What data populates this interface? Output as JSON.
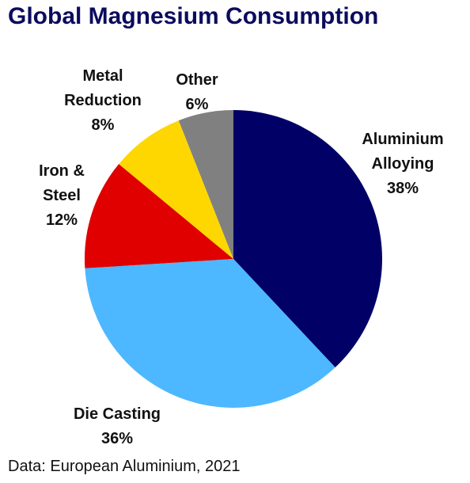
{
  "chart_data": {
    "type": "pie",
    "title": "Global Magnesium Consumption",
    "source": "Data: European Aluminium, 2021",
    "slices": [
      {
        "label_lines": [
          "Aluminium",
          "Alloying"
        ],
        "value": 38,
        "value_label": "38%",
        "color": "#000066"
      },
      {
        "label_lines": [
          "Die Casting"
        ],
        "value": 36,
        "value_label": "36%",
        "color": "#4db8ff"
      },
      {
        "label_lines": [
          "Iron &",
          "Steel"
        ],
        "value": 12,
        "value_label": "12%",
        "color": "#e00000"
      },
      {
        "label_lines": [
          "Metal",
          "Reduction"
        ],
        "value": 8,
        "value_label": "8%",
        "color": "#ffd700"
      },
      {
        "label_lines": [
          "Other"
        ],
        "value": 6,
        "value_label": "6%",
        "color": "#808080"
      }
    ]
  }
}
